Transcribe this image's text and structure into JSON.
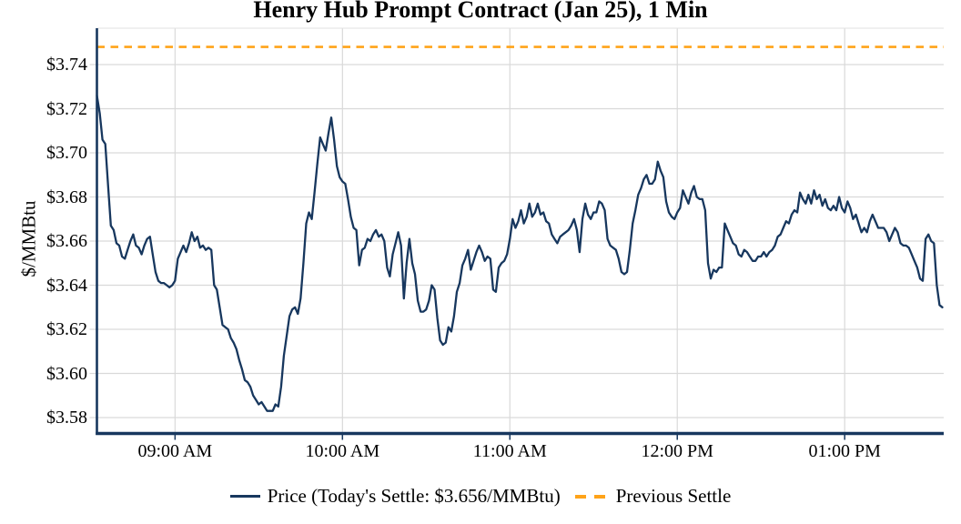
{
  "title": "Henry Hub Prompt Contract (Jan 25), 1 Min",
  "y_axis": {
    "label": "$/MMBtu",
    "ticks": [
      {
        "value": 3.74,
        "label": "$3.74"
      },
      {
        "value": 3.72,
        "label": "$3.72"
      },
      {
        "value": 3.7,
        "label": "$3.70"
      },
      {
        "value": 3.68,
        "label": "$3.68"
      },
      {
        "value": 3.66,
        "label": "$3.66"
      },
      {
        "value": 3.64,
        "label": "$3.64"
      },
      {
        "value": 3.62,
        "label": "$3.62"
      },
      {
        "value": 3.6,
        "label": "$3.60"
      },
      {
        "value": 3.58,
        "label": "$3.58"
      }
    ]
  },
  "x_axis": {
    "ticks": [
      {
        "minute": 28,
        "label": "09:00 AM"
      },
      {
        "minute": 88,
        "label": "10:00 AM"
      },
      {
        "minute": 148,
        "label": "11:00 AM"
      },
      {
        "minute": 208,
        "label": "12:00 PM"
      },
      {
        "minute": 268,
        "label": "01:00 PM"
      }
    ]
  },
  "legend": {
    "price_label": "Price (Today's Settle: $3.656/MMBtu)",
    "previous_settle_label": "Previous Settle"
  },
  "colors": {
    "price_line": "#17375E",
    "previous_settle": "#FFA319",
    "gridline": "#D9D9D9",
    "frame": "#E2E2E2",
    "axis": "#17375E",
    "text": "#000000"
  },
  "chart_data": {
    "type": "line",
    "title": "Henry Hub Prompt Contract (Jan 25), 1 Min",
    "xlabel": "",
    "ylabel": "$/MMBtu",
    "grid": true,
    "legend_position": "bottom",
    "x_tick_labels": [
      "09:00 AM",
      "10:00 AM",
      "11:00 AM",
      "12:00 PM",
      "01:00 PM"
    ],
    "y_ticks": [
      3.58,
      3.6,
      3.62,
      3.64,
      3.66,
      3.68,
      3.7,
      3.72,
      3.74
    ],
    "ylim": [
      3.573,
      3.756
    ],
    "today_settle": 3.656,
    "previous_settle": 3.748,
    "series": [
      {
        "name": "Price",
        "style": "solid",
        "start_time": "08:32 AM",
        "end_time": "01:35 PM",
        "interval_minutes": 1,
        "values": [
          3.726,
          3.718,
          3.706,
          3.704,
          3.685,
          3.667,
          3.665,
          3.659,
          3.658,
          3.653,
          3.652,
          3.656,
          3.66,
          3.663,
          3.658,
          3.657,
          3.654,
          3.658,
          3.661,
          3.662,
          3.654,
          3.646,
          3.642,
          3.641,
          3.641,
          3.64,
          3.639,
          3.64,
          3.642,
          3.652,
          3.655,
          3.658,
          3.655,
          3.659,
          3.664,
          3.66,
          3.662,
          3.657,
          3.658,
          3.656,
          3.657,
          3.656,
          3.64,
          3.638,
          3.63,
          3.622,
          3.621,
          3.62,
          3.616,
          3.614,
          3.611,
          3.606,
          3.602,
          3.597,
          3.596,
          3.594,
          3.59,
          3.588,
          3.586,
          3.587,
          3.585,
          3.583,
          3.583,
          3.583,
          3.586,
          3.585,
          3.594,
          3.608,
          3.617,
          3.626,
          3.629,
          3.63,
          3.627,
          3.634,
          3.65,
          3.668,
          3.673,
          3.67,
          3.682,
          3.695,
          3.707,
          3.704,
          3.701,
          3.709,
          3.716,
          3.706,
          3.694,
          3.689,
          3.687,
          3.686,
          3.679,
          3.671,
          3.666,
          3.665,
          3.649,
          3.656,
          3.657,
          3.661,
          3.66,
          3.663,
          3.665,
          3.662,
          3.663,
          3.66,
          3.648,
          3.644,
          3.654,
          3.659,
          3.664,
          3.658,
          3.634,
          3.65,
          3.661,
          3.65,
          3.645,
          3.633,
          3.628,
          3.628,
          3.629,
          3.633,
          3.64,
          3.638,
          3.625,
          3.615,
          3.613,
          3.614,
          3.621,
          3.619,
          3.626,
          3.637,
          3.641,
          3.649,
          3.652,
          3.656,
          3.647,
          3.651,
          3.655,
          3.658,
          3.655,
          3.651,
          3.653,
          3.652,
          3.638,
          3.637,
          3.648,
          3.65,
          3.651,
          3.654,
          3.661,
          3.67,
          3.666,
          3.669,
          3.674,
          3.668,
          3.671,
          3.677,
          3.671,
          3.673,
          3.677,
          3.672,
          3.673,
          3.669,
          3.668,
          3.663,
          3.661,
          3.659,
          3.662,
          3.663,
          3.664,
          3.665,
          3.667,
          3.67,
          3.665,
          3.655,
          3.67,
          3.677,
          3.672,
          3.67,
          3.673,
          3.673,
          3.678,
          3.677,
          3.674,
          3.661,
          3.658,
          3.657,
          3.656,
          3.652,
          3.646,
          3.645,
          3.646,
          3.656,
          3.668,
          3.674,
          3.681,
          3.684,
          3.688,
          3.69,
          3.686,
          3.686,
          3.688,
          3.696,
          3.692,
          3.689,
          3.678,
          3.673,
          3.671,
          3.67,
          3.673,
          3.675,
          3.683,
          3.68,
          3.677,
          3.682,
          3.685,
          3.68,
          3.679,
          3.679,
          3.674,
          3.65,
          3.643,
          3.647,
          3.646,
          3.648,
          3.648,
          3.668,
          3.665,
          3.662,
          3.659,
          3.658,
          3.654,
          3.653,
          3.656,
          3.655,
          3.653,
          3.651,
          3.651,
          3.653,
          3.653,
          3.655,
          3.653,
          3.655,
          3.656,
          3.658,
          3.662,
          3.663,
          3.666,
          3.669,
          3.668,
          3.672,
          3.674,
          3.673,
          3.682,
          3.679,
          3.677,
          3.681,
          3.677,
          3.683,
          3.679,
          3.681,
          3.676,
          3.679,
          3.675,
          3.674,
          3.676,
          3.674,
          3.68,
          3.675,
          3.673,
          3.678,
          3.675,
          3.67,
          3.672,
          3.668,
          3.664,
          3.666,
          3.664,
          3.669,
          3.672,
          3.669,
          3.666,
          3.666,
          3.666,
          3.664,
          3.66,
          3.663,
          3.666,
          3.664,
          3.659,
          3.658,
          3.658,
          3.657,
          3.654,
          3.651,
          3.648,
          3.643,
          3.642,
          3.661,
          3.663,
          3.66,
          3.659,
          3.64,
          3.631,
          3.63
        ]
      },
      {
        "name": "Previous Settle",
        "style": "dashed",
        "value": 3.748
      }
    ]
  }
}
